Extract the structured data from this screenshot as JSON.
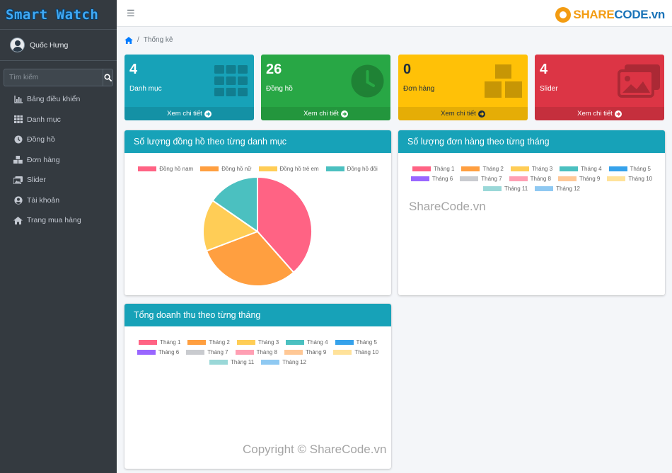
{
  "sidebar": {
    "brand": "Smart Watch",
    "user": "Quốc Hưng",
    "search_placeholder": "Tìm kiếm",
    "items": [
      {
        "label": "Bảng điều khiển",
        "icon": "chart-bar-icon"
      },
      {
        "label": "Danh mục",
        "icon": "table-grid-icon"
      },
      {
        "label": "Đồng hồ",
        "icon": "clock-icon"
      },
      {
        "label": "Đơn hàng",
        "icon": "boxes-icon"
      },
      {
        "label": "Slider",
        "icon": "images-icon"
      },
      {
        "label": "Tài khoản",
        "icon": "user-circle-icon"
      },
      {
        "label": "Trang mua hàng",
        "icon": "home-icon"
      }
    ]
  },
  "topbar": {
    "menu_icon": "hamburger-icon",
    "logo_part1": "SHARE",
    "logo_part2": "CODE.vn"
  },
  "breadcrumb": {
    "home_icon": "home-icon",
    "current": "Thống kê"
  },
  "stats": [
    {
      "value": "4",
      "label": "Danh mục",
      "more": "Xem chi tiết",
      "icon": "table-grid-icon",
      "color": "#17a2b8"
    },
    {
      "value": "26",
      "label": "Đồng hồ",
      "more": "Xem chi tiết",
      "icon": "clock-icon",
      "color": "#28a745"
    },
    {
      "value": "0",
      "label": "Đơn hàng",
      "more": "Xem chi tiết",
      "icon": "boxes-icon",
      "color": "#ffc107"
    },
    {
      "value": "4",
      "label": "Slider",
      "more": "Xem chi tiết",
      "icon": "images-icon",
      "color": "#dc3545"
    }
  ],
  "cards": {
    "pie_title": "Số lượng đồng hồ theo từng danh mục",
    "orders_title": "Số lượng đơn hàng theo từng tháng",
    "revenue_title": "Tổng doanh thu theo từng tháng"
  },
  "month_legend": [
    {
      "label": "Tháng 1",
      "color": "#ff6384"
    },
    {
      "label": "Tháng 2",
      "color": "#ff9f40"
    },
    {
      "label": "Tháng 3",
      "color": "#ffcd56"
    },
    {
      "label": "Tháng 4",
      "color": "#4bc0c0"
    },
    {
      "label": "Tháng 5",
      "color": "#36a2eb"
    },
    {
      "label": "Tháng 6",
      "color": "#9966ff"
    },
    {
      "label": "Tháng 7",
      "color": "#c9cbcf"
    },
    {
      "label": "Tháng 8",
      "color": "#ff9fb3"
    },
    {
      "label": "Tháng 9",
      "color": "#ffc896"
    },
    {
      "label": "Tháng 10",
      "color": "#ffe29a"
    },
    {
      "label": "Tháng 11",
      "color": "#9ad8d8"
    },
    {
      "label": "Tháng 12",
      "color": "#8fc9f2"
    }
  ],
  "chart_data": {
    "type": "pie",
    "categories": [
      "Đồng hồ nam",
      "Đồng hồ nữ",
      "Đồng hồ trẻ em",
      "Đồng hồ đôi"
    ],
    "values": [
      10,
      8,
      4,
      4
    ],
    "colors": [
      "#ff6384",
      "#ff9f40",
      "#ffcd56",
      "#4bc0c0"
    ],
    "legend": "top"
  },
  "watermarks": {
    "center": "ShareCode.vn",
    "footer": "Copyright © ShareCode.vn"
  }
}
